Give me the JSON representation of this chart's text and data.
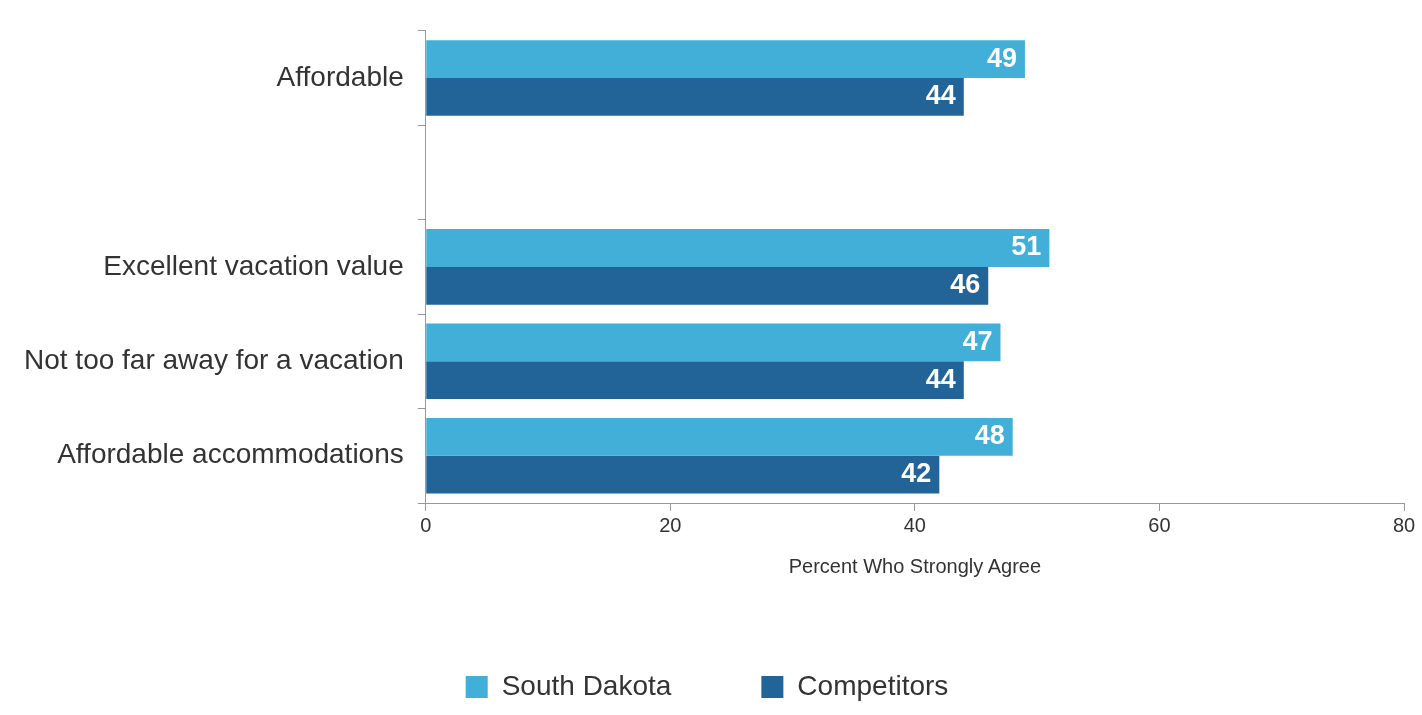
{
  "chart_data": {
    "type": "bar",
    "orientation": "horizontal",
    "xlabel": "Percent Who Strongly Agree",
    "categories": [
      "Affordable",
      null,
      "Excellent vacation value",
      "Not too far away for a vacation",
      "Affordable accommodations"
    ],
    "series": [
      {
        "name": "South Dakota",
        "color": "#41afd7",
        "values": [
          49,
          null,
          51,
          47,
          48
        ]
      },
      {
        "name": "Competitors",
        "color": "#236498",
        "values": [
          44,
          null,
          46,
          44,
          42
        ]
      }
    ],
    "xlim": [
      0,
      80
    ],
    "xticks": [
      0,
      20,
      40,
      60,
      80
    ],
    "grid": false,
    "legend": "bottom",
    "data_labels": true
  }
}
